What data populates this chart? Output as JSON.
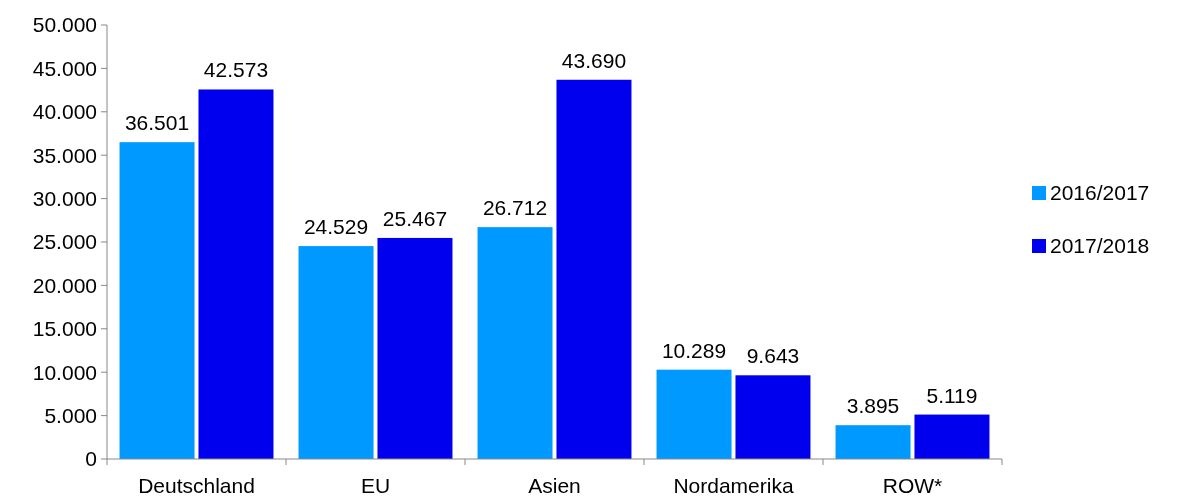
{
  "chart_data": {
    "type": "bar",
    "categories": [
      "Deutschland",
      "EU",
      "Asien",
      "Nordamerika",
      "ROW*"
    ],
    "series": [
      {
        "name": "2016/2017",
        "color": "#0099ff",
        "values": [
          36501,
          24529,
          26712,
          10289,
          3895
        ],
        "value_labels": [
          "36.501",
          "24.529",
          "26.712",
          "10.289",
          "3.895"
        ]
      },
      {
        "name": "2017/2018",
        "color": "#0000ee",
        "values": [
          42573,
          25467,
          43690,
          9643,
          5119
        ],
        "value_labels": [
          "42.573",
          "25.467",
          "43.690",
          "9.643",
          "5.119"
        ]
      }
    ],
    "ylim": [
      0,
      50000
    ],
    "yticks": [
      {
        "value": 0,
        "label": "0"
      },
      {
        "value": 5000,
        "label": "5.000"
      },
      {
        "value": 10000,
        "label": "10.000"
      },
      {
        "value": 15000,
        "label": "15.000"
      },
      {
        "value": 20000,
        "label": "20.000"
      },
      {
        "value": 25000,
        "label": "25.000"
      },
      {
        "value": 30000,
        "label": "30.000"
      },
      {
        "value": 35000,
        "label": "35.000"
      },
      {
        "value": 40000,
        "label": "40.000"
      },
      {
        "value": 45000,
        "label": "45.000"
      },
      {
        "value": 50000,
        "label": "50.000"
      }
    ],
    "grid": false,
    "legend": "right"
  }
}
